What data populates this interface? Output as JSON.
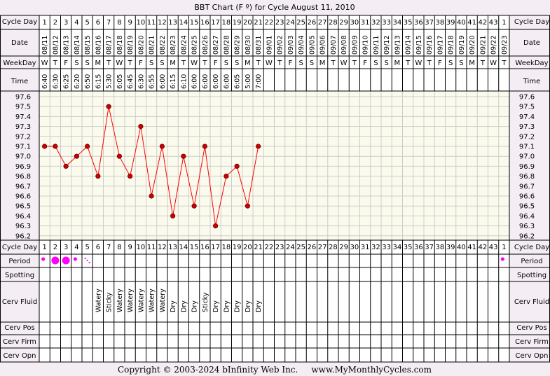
{
  "title": "BBT Chart (F º) for Cycle August 11, 2010",
  "copyright": "Copyright © 2003-2024 bInfinity Web Inc.     www.MyMonthlyCycles.com",
  "row_labels": {
    "cycle_day": "Cycle Day",
    "date": "Date",
    "weekday": "WeekDay",
    "time": "Time",
    "period": "Period",
    "spotting": "Spotting",
    "cerv_fluid": "Cerv Fluid",
    "cerv_pos": "Cerv Pos",
    "cerv_firm": "Cerv Firm",
    "cerv_opn": "Cerv Opn"
  },
  "colors": {
    "background": "#f4eef4",
    "plot_bg": "#fbfbed",
    "grid": "#cccccc",
    "line": "#ff0000",
    "dot_fill": "#cc0000",
    "period": "#ff00ff"
  },
  "columns": {
    "cycle_days": [
      "1",
      "2",
      "3",
      "4",
      "5",
      "6",
      "7",
      "8",
      "9",
      "10",
      "11",
      "12",
      "13",
      "14",
      "15",
      "16",
      "17",
      "18",
      "19",
      "20",
      "21",
      "22",
      "23",
      "24",
      "25",
      "26",
      "27",
      "28",
      "29",
      "30",
      "31",
      "32",
      "33",
      "34",
      "35",
      "36",
      "37",
      "38",
      "39",
      "40",
      "41",
      "42",
      "43",
      "1"
    ],
    "dates": [
      "08/11",
      "08/12",
      "08/13",
      "08/14",
      "08/15",
      "08/16",
      "08/17",
      "08/18",
      "08/19",
      "08/20",
      "08/21",
      "08/22",
      "08/23",
      "08/24",
      "08/25",
      "08/26",
      "08/27",
      "08/28",
      "08/29",
      "08/30",
      "08/31",
      "09/01",
      "09/02",
      "09/03",
      "09/04",
      "09/05",
      "09/06",
      "09/07",
      "09/08",
      "09/09",
      "09/10",
      "09/11",
      "09/12",
      "09/13",
      "09/14",
      "09/15",
      "09/16",
      "09/17",
      "09/18",
      "09/19",
      "09/20",
      "09/21",
      "09/22",
      "09/23"
    ],
    "weekdays": [
      "W",
      "T",
      "F",
      "S",
      "S",
      "M",
      "T",
      "W",
      "T",
      "F",
      "S",
      "S",
      "M",
      "T",
      "W",
      "T",
      "F",
      "S",
      "S",
      "M",
      "T",
      "W",
      "T",
      "F",
      "S",
      "S",
      "M",
      "T",
      "W",
      "T",
      "F",
      "S",
      "S",
      "M",
      "T",
      "W",
      "T",
      "F",
      "S",
      "S",
      "M",
      "T",
      "W",
      "T"
    ],
    "times": [
      "6:40",
      "6:30",
      "6:25",
      "6:20",
      "6:50",
      "6:15",
      "5:30",
      "6:05",
      "6:45",
      "6:30",
      "6:55",
      "6:00",
      "6:15",
      "6:10",
      "6:00",
      "6:00",
      "6:00",
      "6:00",
      "6:05",
      "5:00",
      "7:00",
      "",
      "",
      "",
      "",
      "",
      "",
      "",
      "",
      "",
      "",
      "",
      "",
      "",
      "",
      "",
      "",
      "",
      "",
      "",
      "",
      "",
      "",
      ""
    ],
    "period": [
      "light",
      "heavy",
      "heavy",
      "light",
      "spotting",
      "",
      "",
      "",
      "",
      "",
      "",
      "",
      "",
      "",
      "",
      "",
      "",
      "",
      "",
      "",
      "",
      "",
      "",
      "",
      "",
      "",
      "",
      "",
      "",
      "",
      "",
      "",
      "",
      "",
      "",
      "",
      "",
      "",
      "",
      "",
      "",
      "",
      "",
      "light"
    ],
    "cerv_fluid": [
      "",
      "",
      "",
      "",
      "",
      "Watery",
      "Sticky",
      "Watery",
      "Watery",
      "Watery",
      "Watery",
      "Watery",
      "Dry",
      "Dry",
      "Dry",
      "Sticky",
      "Dry",
      "Dry",
      "Dry",
      "Dry",
      "Dry",
      "",
      "",
      "",
      "",
      "",
      "",
      "",
      "",
      "",
      "",
      "",
      "",
      "",
      "",
      "",
      "",
      "",
      "",
      "",
      "",
      "",
      "",
      ""
    ]
  },
  "chart_data": {
    "type": "line",
    "title": "BBT Chart (F º) for Cycle August 11, 2010",
    "x": [
      "1",
      "2",
      "3",
      "4",
      "5",
      "6",
      "7",
      "8",
      "9",
      "10",
      "11",
      "12",
      "13",
      "14",
      "15",
      "16",
      "17",
      "18",
      "19",
      "20",
      "21"
    ],
    "series": [
      {
        "values": [
          97.1,
          97.1,
          96.9,
          97.0,
          97.1,
          96.8,
          97.5,
          97.0,
          96.8,
          97.3,
          96.6,
          97.1,
          96.4,
          97.0,
          96.5,
          97.1,
          96.3,
          96.8,
          96.9,
          96.5,
          97.1
        ]
      }
    ],
    "y_ticks": [
      "97.6",
      "97.5",
      "97.4",
      "97.3",
      "97.2",
      "97.1",
      "97.0",
      "96.9",
      "96.8",
      "96.7",
      "96.6",
      "96.5",
      "96.4",
      "96.3",
      "96.2"
    ],
    "ylim": [
      96.2,
      97.6
    ],
    "grid": true
  }
}
